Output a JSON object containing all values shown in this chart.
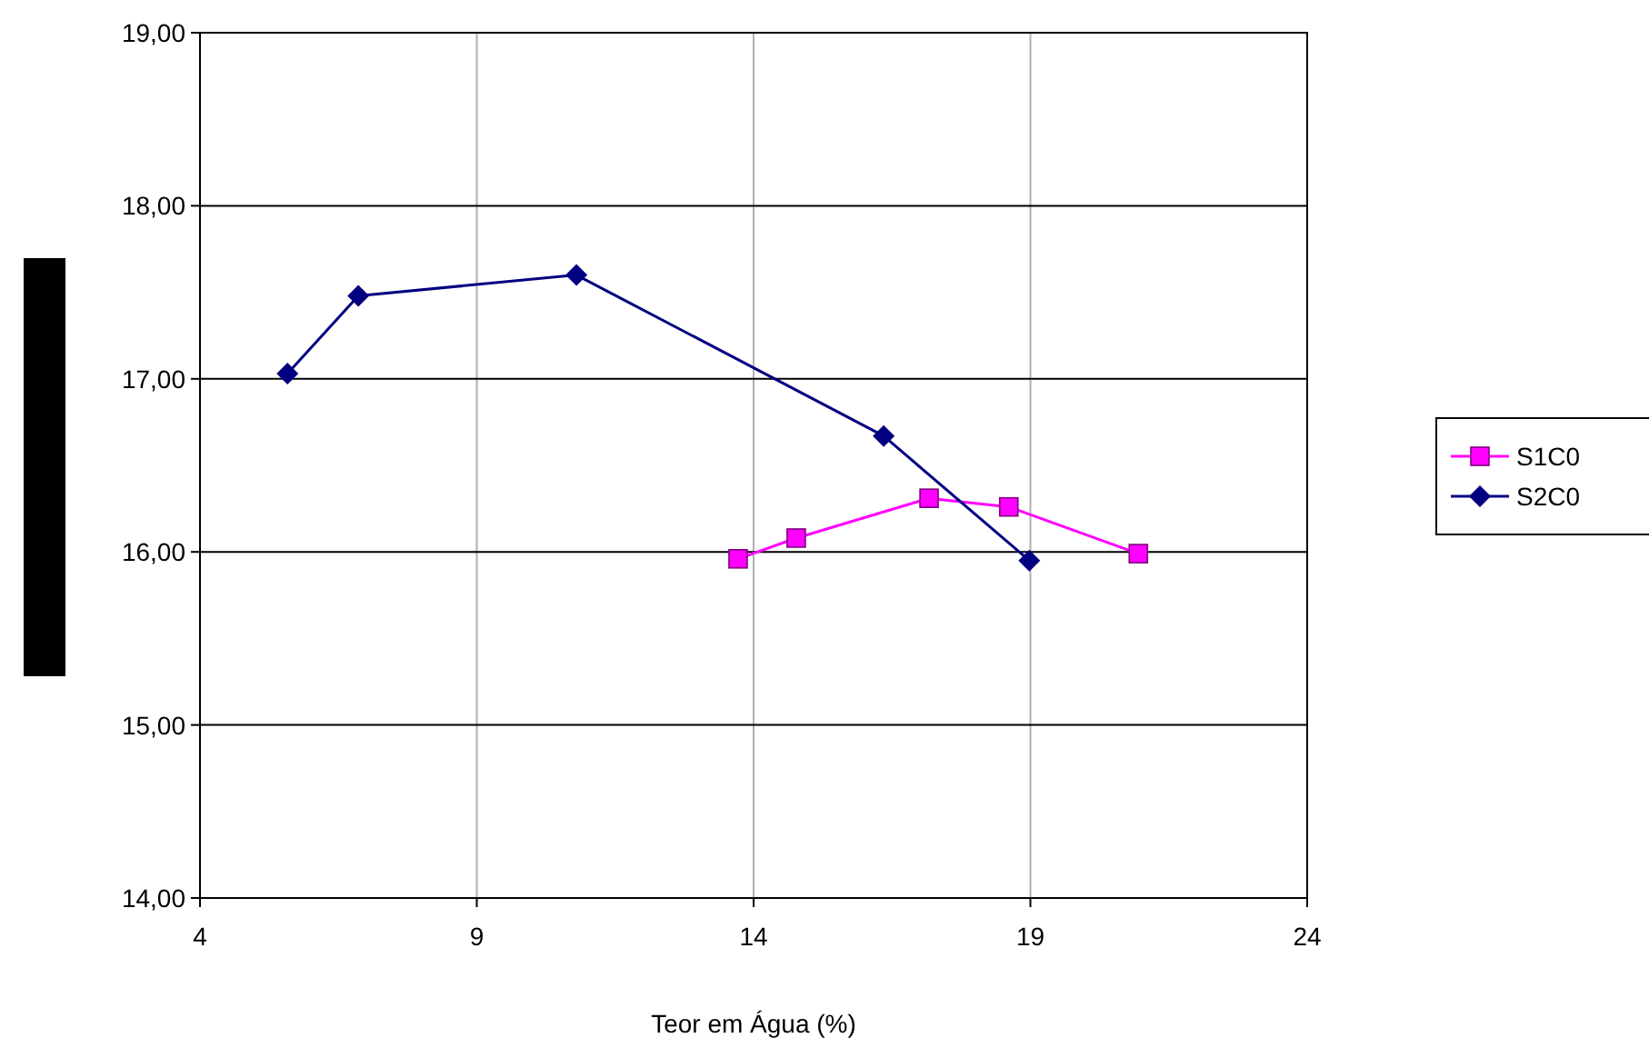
{
  "chart_data": {
    "type": "line",
    "xlabel": "Teor em Água (%)",
    "xlim": [
      4,
      24
    ],
    "xticks": [
      4,
      9,
      14,
      19,
      24
    ],
    "ylim": [
      14,
      19
    ],
    "yticks": [
      {
        "value": 14,
        "label": "14,00"
      },
      {
        "value": 15,
        "label": "15,00"
      },
      {
        "value": 16,
        "label": "16,00"
      },
      {
        "value": 17,
        "label": "17,00"
      },
      {
        "value": 18,
        "label": "18,00"
      },
      {
        "value": 19,
        "label": "19,00"
      }
    ],
    "grid": true,
    "legend": "right",
    "line_style": "solid",
    "series": [
      {
        "name": "S1C0",
        "color": "#ff00ff",
        "marker": "square",
        "x": [
          13.72,
          14.77,
          17.17,
          18.61,
          20.95
        ],
        "values": [
          15.96,
          16.08,
          16.31,
          16.26,
          15.99
        ]
      },
      {
        "name": "S2C0",
        "color": "#000080",
        "marker": "diamond",
        "x": [
          5.58,
          6.86,
          10.8,
          16.35,
          18.98
        ],
        "values": [
          17.03,
          17.48,
          17.6,
          16.67,
          15.95
        ]
      }
    ]
  }
}
